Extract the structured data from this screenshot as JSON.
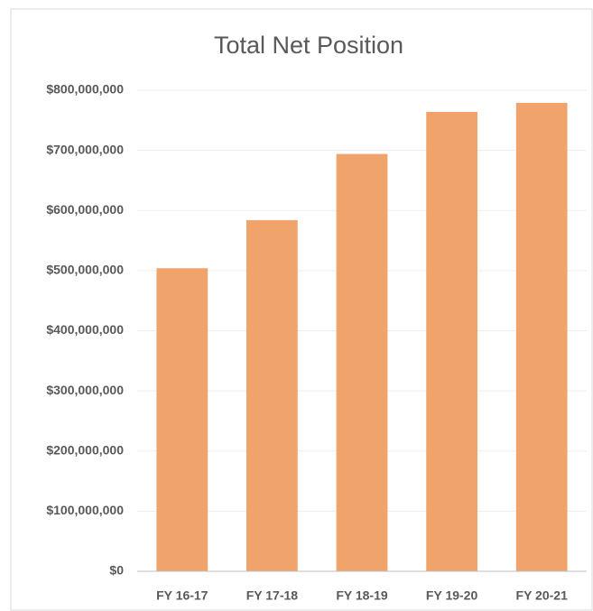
{
  "chart_data": {
    "type": "bar",
    "title": "Total Net Position",
    "categories": [
      "FY 16-17",
      "FY 17-18",
      "FY 18-19",
      "FY 19-20",
      "FY 20-21"
    ],
    "values": [
      504000000,
      584000000,
      694000000,
      764000000,
      779000000
    ],
    "color": "#f0a46c",
    "ylim": [
      0,
      800000000
    ],
    "yticks": [
      {
        "value": 0,
        "label": "$0"
      },
      {
        "value": 100000000,
        "label": "$100,000,000"
      },
      {
        "value": 200000000,
        "label": "$200,000,000"
      },
      {
        "value": 300000000,
        "label": "$300,000,000"
      },
      {
        "value": 400000000,
        "label": "$400,000,000"
      },
      {
        "value": 500000000,
        "label": "$500,000,000"
      },
      {
        "value": 600000000,
        "label": "$600,000,000"
      },
      {
        "value": 700000000,
        "label": "$700,000,000"
      },
      {
        "value": 800000000,
        "label": "$800,000,000"
      }
    ],
    "grid": true
  }
}
